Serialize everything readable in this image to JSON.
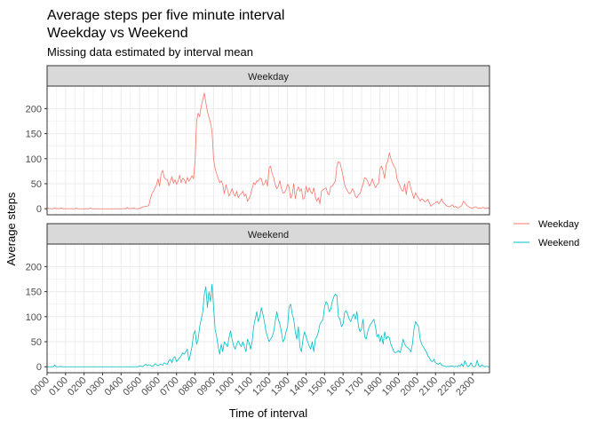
{
  "title_line1": "Average steps per five minute interval",
  "title_line2": "Weekday vs Weekend",
  "subtitle": "Missing data estimated by interval mean",
  "colors": {
    "weekday": "#F8766D",
    "weekend": "#00BFC4",
    "strip_fill": "#D9D9D9",
    "grid": "#EBEBEB",
    "border": "#333333"
  },
  "chart_data": {
    "type": "line",
    "xlabel": "Time of interval",
    "ylabel": "Average steps",
    "xlim": [
      0,
      287
    ],
    "ylim": [
      -12,
      245
    ],
    "y_ticks": [
      0,
      50,
      100,
      150,
      200
    ],
    "x_ticks": [
      {
        "index": 0,
        "label": "0000"
      },
      {
        "index": 12,
        "label": "0100"
      },
      {
        "index": 24,
        "label": "0200"
      },
      {
        "index": 36,
        "label": "0300"
      },
      {
        "index": 48,
        "label": "0400"
      },
      {
        "index": 60,
        "label": "0500"
      },
      {
        "index": 72,
        "label": "0600"
      },
      {
        "index": 84,
        "label": "0700"
      },
      {
        "index": 96,
        "label": "0800"
      },
      {
        "index": 108,
        "label": "0900"
      },
      {
        "index": 120,
        "label": "1000"
      },
      {
        "index": 132,
        "label": "1100"
      },
      {
        "index": 144,
        "label": "1200"
      },
      {
        "index": 156,
        "label": "1300"
      },
      {
        "index": 168,
        "label": "1400"
      },
      {
        "index": 180,
        "label": "1500"
      },
      {
        "index": 192,
        "label": "1600"
      },
      {
        "index": 204,
        "label": "1700"
      },
      {
        "index": 216,
        "label": "1800"
      },
      {
        "index": 228,
        "label": "1900"
      },
      {
        "index": 240,
        "label": "2000"
      },
      {
        "index": 252,
        "label": "2100"
      },
      {
        "index": 264,
        "label": "2200"
      },
      {
        "index": 276,
        "label": "2300"
      }
    ],
    "legend": {
      "position": "right",
      "entries": [
        "Weekday",
        "Weekend"
      ]
    },
    "panels": [
      {
        "name": "Weekday",
        "key": "weekday",
        "series": {
          "name": "Weekday",
          "values": [
            2.3,
            0.5,
            0.2,
            0.2,
            0.1,
            1.5,
            0.3,
            0.7,
            0.0,
            1.3,
            0.3,
            0.1,
            0.4,
            0.0,
            0.2,
            0.2,
            0.4,
            0.0,
            0.0,
            1.0,
            0.0,
            0.0,
            0.0,
            0.0,
            0.0,
            0.1,
            0.0,
            0.0,
            1.6,
            0.0,
            0.0,
            0.0,
            0.0,
            0.0,
            0.0,
            0.0,
            0.0,
            0.0,
            0.0,
            0.0,
            0.0,
            0.0,
            0.2,
            0.0,
            0.0,
            0.0,
            0.0,
            0.0,
            0.0,
            0.0,
            0.6,
            0.0,
            2.5,
            0.0,
            0.8,
            0.0,
            1.8,
            0.4,
            0.0,
            0.3,
            0.5,
            2.2,
            3.6,
            4.2,
            4.7,
            5.5,
            6.4,
            20.0,
            30.0,
            35.0,
            42.0,
            48.0,
            60.0,
            45.0,
            70.0,
            77.0,
            62.0,
            59.0,
            58.0,
            46.0,
            55.0,
            64.0,
            51.0,
            58.0,
            49.0,
            55.0,
            67.0,
            52.0,
            61.0,
            58.0,
            50.0,
            63.0,
            55.0,
            60.0,
            66.0,
            60.0,
            95.0,
            175.0,
            191.0,
            184.0,
            205.0,
            218.0,
            231.0,
            212.0,
            194.0,
            183.0,
            171.0,
            155.0,
            100.0,
            81.0,
            70.0,
            60.0,
            52.0,
            56.0,
            48.0,
            30.0,
            48.0,
            38.0,
            25.0,
            32.0,
            40.0,
            30.0,
            25.0,
            35.0,
            22.0,
            28.0,
            30.0,
            35.0,
            25.0,
            29.0,
            15.0,
            20.0,
            28.0,
            40.0,
            52.0,
            48.0,
            56.0,
            55.0,
            61.0,
            60.0,
            47.0,
            50.0,
            58.0,
            45.0,
            82.0,
            85.0,
            70.0,
            62.0,
            48.0,
            40.0,
            45.0,
            56.0,
            40.0,
            32.0,
            32.0,
            38.0,
            49.0,
            43.0,
            21.0,
            28.0,
            50.0,
            20.0,
            36.0,
            44.0,
            35.0,
            40.0,
            19.0,
            22.0,
            45.0,
            33.0,
            42.0,
            34.0,
            30.0,
            42.0,
            24.0,
            15.0,
            22.0,
            10.0,
            35.0,
            38.0,
            40.0,
            42.0,
            30.0,
            28.0,
            45.0,
            45.0,
            50.0,
            55.0,
            85.0,
            94.0,
            92.0,
            79.0,
            65.0,
            48.0,
            40.0,
            35.0,
            30.0,
            32.0,
            40.0,
            35.0,
            25.0,
            22.0,
            28.0,
            30.0,
            40.0,
            50.0,
            62.0,
            60.0,
            55.0,
            45.0,
            50.0,
            60.0,
            50.0,
            42.0,
            48.0,
            50.0,
            80.0,
            85.0,
            75.0,
            60.0,
            88.0,
            95.0,
            112.0,
            100.0,
            92.0,
            85.0,
            80.0,
            60.0,
            52.0,
            45.0,
            37.0,
            35.0,
            50.0,
            28.0,
            52.0,
            55.0,
            40.0,
            30.0,
            20.0,
            32.0,
            25.0,
            22.0,
            15.0,
            20.0,
            18.0,
            14.0,
            15.0,
            19.0,
            12.0,
            5.0,
            8.0,
            10.0,
            12.0,
            15.0,
            10.0,
            14.0,
            20.0,
            12.0,
            10.0,
            6.0,
            5.0,
            4.0,
            6.0,
            8.0,
            3.0,
            5.0,
            2.0,
            2.0,
            4.0,
            6.0,
            15.0,
            12.0,
            8.0,
            5.0,
            3.0,
            2.0,
            1.0,
            3.0,
            4.0,
            2.0,
            1.5,
            1.0,
            2.0,
            3.0,
            1.0,
            1.0,
            2.0,
            0.5
          ]
        }
      },
      {
        "name": "Weekend",
        "key": "weekend",
        "series": {
          "name": "Weekend",
          "values": [
            0.2,
            0.0,
            0.0,
            0.0,
            0.0,
            3.7,
            0.0,
            0.0,
            0.0,
            0.5,
            0.0,
            0.0,
            0.0,
            0.0,
            0.0,
            0.0,
            0.0,
            0.0,
            0.0,
            0.0,
            0.0,
            0.0,
            0.0,
            0.0,
            0.0,
            0.0,
            0.0,
            0.0,
            0.0,
            0.0,
            0.0,
            0.0,
            0.0,
            0.0,
            0.0,
            0.0,
            0.0,
            0.0,
            0.0,
            0.0,
            0.0,
            0.0,
            0.0,
            0.0,
            0.0,
            0.0,
            0.0,
            0.0,
            0.0,
            0.0,
            0.0,
            0.0,
            0.0,
            0.0,
            0.0,
            0.0,
            0.0,
            0.0,
            0.0,
            0.0,
            2.0,
            1.0,
            0.0,
            3.0,
            5.0,
            2.0,
            4.0,
            3.0,
            1.0,
            2.0,
            6.0,
            4.0,
            2.0,
            4.0,
            5.0,
            3.0,
            8.0,
            6.0,
            5.0,
            12.0,
            15.0,
            8.0,
            18.0,
            20.0,
            10.0,
            14.0,
            18.0,
            22.0,
            28.0,
            25.0,
            30.0,
            35.0,
            12.0,
            25.0,
            40.0,
            65.0,
            72.0,
            45.0,
            55.0,
            80.0,
            95.0,
            110.0,
            145.0,
            160.0,
            118.0,
            150.0,
            130.0,
            165.0,
            120.0,
            75.0,
            60.0,
            40.0,
            25.0,
            45.0,
            30.0,
            50.0,
            45.0,
            40.0,
            58.0,
            72.0,
            55.0,
            42.0,
            35.0,
            45.0,
            52.0,
            45.0,
            40.0,
            50.0,
            40.0,
            30.0,
            55.0,
            48.0,
            35.0,
            50.0,
            80.0,
            95.0,
            110.0,
            90.0,
            100.0,
            118.0,
            105.0,
            90.0,
            70.0,
            60.0,
            50.0,
            55.0,
            60.0,
            70.0,
            90.0,
            110.0,
            95.0,
            85.0,
            70.0,
            50.0,
            55.0,
            70.0,
            80.0,
            120.0,
            125.0,
            105.0,
            95.0,
            70.0,
            55.0,
            80.0,
            40.0,
            30.0,
            55.0,
            70.0,
            60.0,
            50.0,
            42.0,
            35.0,
            50.0,
            30.0,
            55.0,
            60.0,
            70.0,
            85.0,
            90.0,
            95.0,
            120.0,
            130.0,
            125.0,
            110.0,
            115.0,
            130.0,
            140.0,
            145.0,
            142.0,
            100.0,
            95.0,
            80.0,
            85.0,
            108.0,
            112.0,
            105.0,
            95.0,
            90.0,
            100.0,
            105.0,
            95.0,
            110.0,
            80.0,
            70.0,
            75.0,
            95.0,
            60.0,
            55.0,
            70.0,
            80.0,
            85.0,
            90.0,
            95.0,
            80.0,
            60.0,
            65.0,
            50.0,
            62.0,
            45.0,
            70.0,
            55.0,
            60.0,
            58.0,
            45.0,
            38.0,
            30.0,
            28.0,
            30.0,
            32.0,
            28.0,
            40.0,
            55.0,
            45.0,
            40.0,
            38.0,
            35.0,
            30.0,
            45.0,
            75.0,
            90.0,
            85.0,
            80.0,
            55.0,
            45.0,
            40.0,
            35.0,
            30.0,
            22.0,
            18.0,
            12.0,
            10.0,
            15.0,
            8.0,
            6.0,
            5.0,
            8.0,
            3.0,
            2.0,
            1.0,
            0.0,
            1.0,
            0.0,
            2.0,
            1.0,
            0.0,
            1.0,
            0.0,
            3.0,
            1.0,
            6.0,
            0.0,
            12.0,
            5.0,
            0.0,
            2.0,
            8.0,
            1.0,
            0.0,
            1.0,
            13.0,
            2.0,
            0.0,
            4.0,
            1.0,
            0.0,
            1.0,
            0.0,
            0.0
          ]
        }
      }
    ]
  }
}
